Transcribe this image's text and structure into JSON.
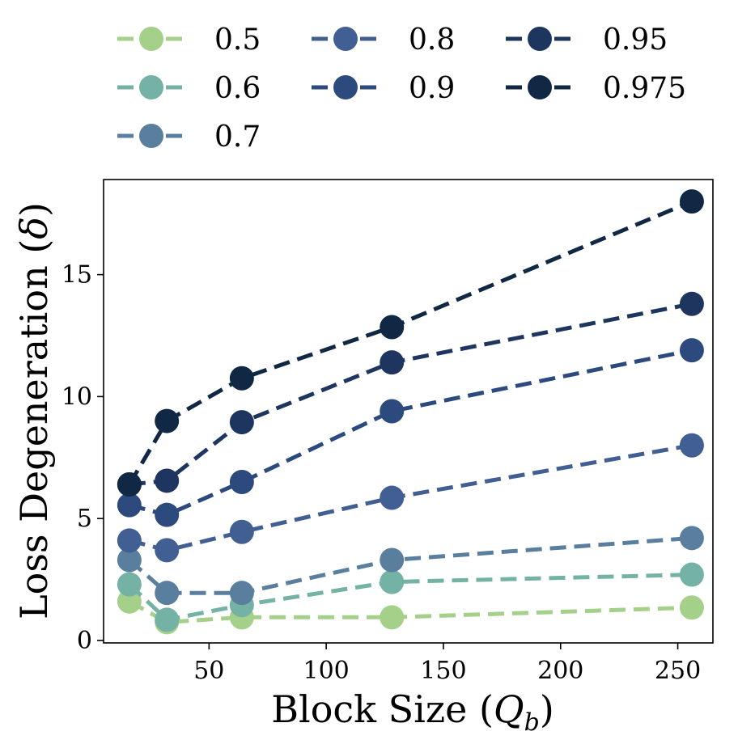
{
  "chart_data": {
    "type": "line",
    "title": "",
    "xlabel": "Block Size (",
    "xlabel_var": "Q",
    "xlabel_sub": "b",
    "xlabel_close": ")",
    "ylabel": "Loss Degeneration (",
    "ylabel_var": "δ",
    "ylabel_close": ")",
    "xlim": [
      5,
      265
    ],
    "ylim": [
      -0.1,
      18.9
    ],
    "xticks": [
      50,
      100,
      150,
      200,
      250
    ],
    "xtick_labels": [
      "50",
      "100",
      "150",
      "200",
      "250"
    ],
    "yticks": [
      0,
      5,
      10,
      15
    ],
    "ytick_labels": [
      "0",
      "5",
      "10",
      "15"
    ],
    "grid": false,
    "legend_position": "top",
    "x": [
      16,
      32,
      64,
      128,
      256
    ],
    "series": [
      {
        "name": "0.5",
        "color": "#a5d08a",
        "values": [
          1.6,
          0.75,
          0.95,
          0.95,
          1.35
        ]
      },
      {
        "name": "0.6",
        "color": "#75b2a6",
        "values": [
          2.3,
          0.85,
          1.45,
          2.4,
          2.7
        ]
      },
      {
        "name": "0.7",
        "color": "#5a7e9e",
        "values": [
          3.3,
          1.95,
          1.95,
          3.3,
          4.2
        ]
      },
      {
        "name": "0.8",
        "color": "#425f93",
        "values": [
          4.1,
          3.7,
          4.45,
          5.85,
          8.0
        ]
      },
      {
        "name": "0.9",
        "color": "#2c4a7e",
        "values": [
          5.55,
          5.15,
          6.5,
          9.4,
          11.9
        ]
      },
      {
        "name": "0.95",
        "color": "#1e365f",
        "values": [
          6.4,
          6.55,
          8.95,
          11.4,
          13.8
        ]
      },
      {
        "name": "0.975",
        "color": "#112844",
        "values": [
          6.4,
          9.0,
          10.75,
          12.85,
          18.0
        ]
      }
    ]
  }
}
